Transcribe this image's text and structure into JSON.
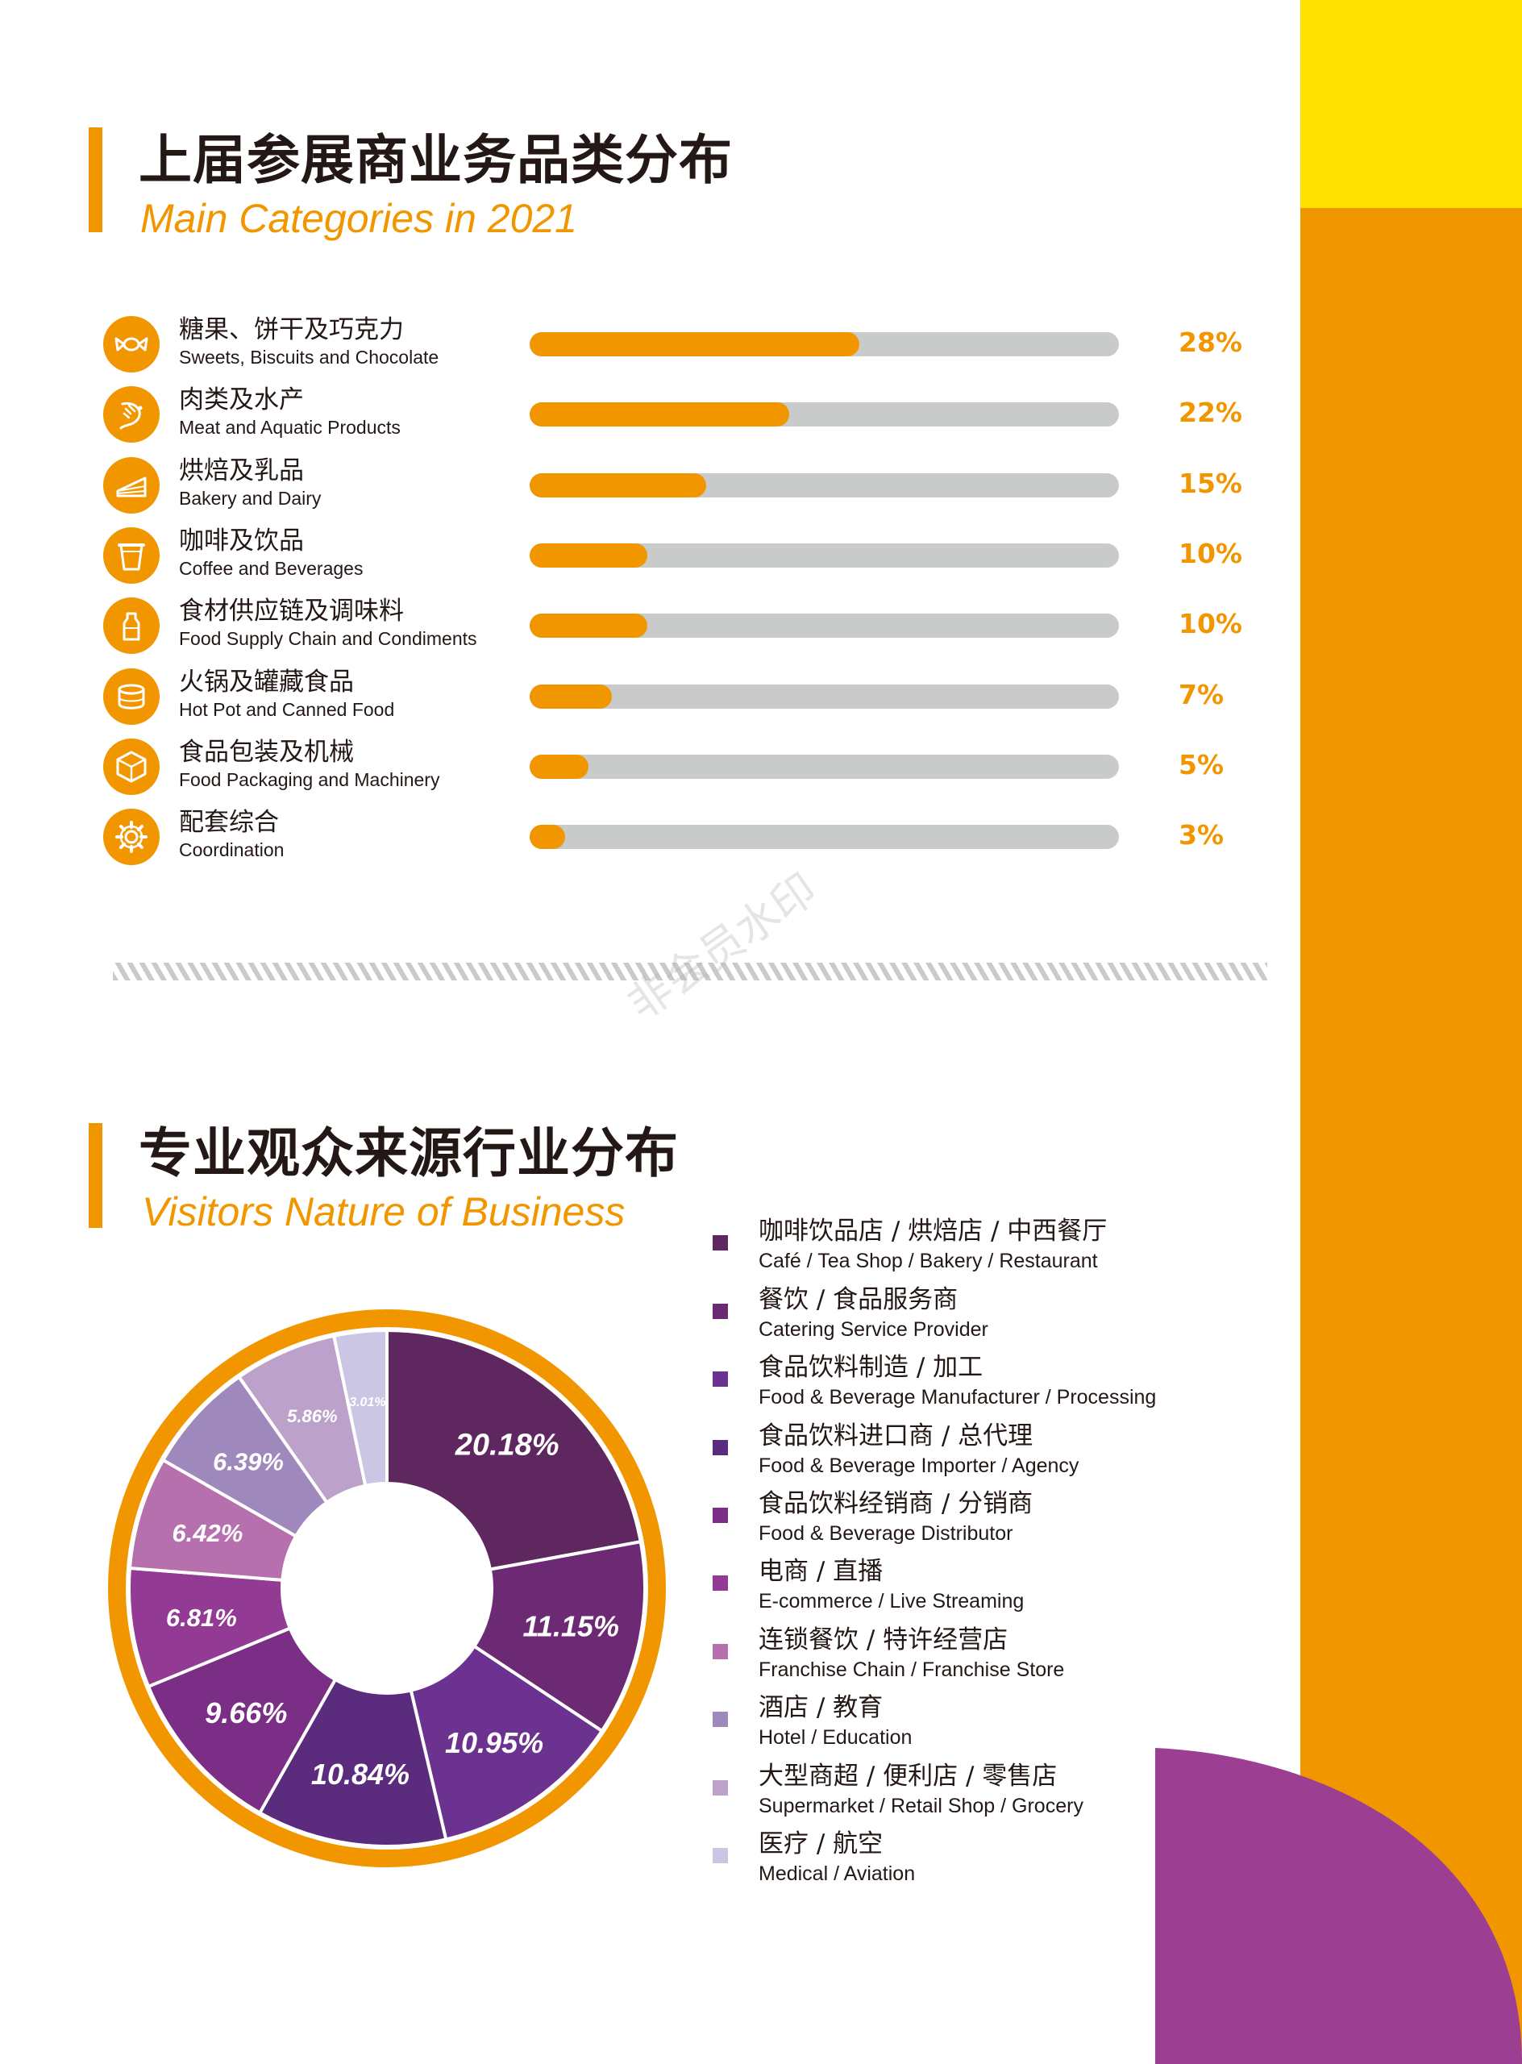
{
  "colors": {
    "accent_orange": "#F29600",
    "accent_yellow": "#FFE100",
    "accent_purple": "#9C3E91",
    "track_gray": "#C9CACA"
  },
  "section1": {
    "title": "上届参展商业务品类分布",
    "subtitle": "Main Categories in 2021"
  },
  "section2": {
    "title": "专业观众来源行业分布",
    "subtitle": "Visitors Nature of Business"
  },
  "watermark": "非会员水印",
  "chart_data": [
    {
      "type": "bar",
      "orientation": "horizontal",
      "title": "Main Categories in 2021",
      "value_unit": "%",
      "xlim": [
        0,
        50
      ],
      "categories": [
        {
          "cn": "糖果、饼干及巧克力",
          "en": "Sweets, Biscuits and Chocolate",
          "icon": "candy-icon",
          "value": 28,
          "label": "28%"
        },
        {
          "cn": "肉类及水产",
          "en": "Meat and Aquatic Products",
          "icon": "shrimp-icon",
          "value": 22,
          "label": "22%"
        },
        {
          "cn": "烘焙及乳品",
          "en": "Bakery and Dairy",
          "icon": "cake-icon",
          "value": 15,
          "label": "15%"
        },
        {
          "cn": "咖啡及饮品",
          "en": "Coffee and Beverages",
          "icon": "cup-icon",
          "value": 10,
          "label": "10%"
        },
        {
          "cn": "食材供应链及调味料",
          "en": "Food Supply Chain and Condiments",
          "icon": "condiment-bottle-icon",
          "value": 10,
          "label": "10%"
        },
        {
          "cn": "火锅及罐藏食品",
          "en": "Hot Pot and Canned Food",
          "icon": "can-icon",
          "value": 7,
          "label": "7%"
        },
        {
          "cn": "食品包装及机械",
          "en": "Food Packaging and Machinery",
          "icon": "box-icon",
          "value": 5,
          "label": "5%"
        },
        {
          "cn": "配套综合",
          "en": "Coordination",
          "icon": "gear-icon",
          "value": 3,
          "label": "3%"
        }
      ]
    },
    {
      "type": "pie",
      "variant": "donut",
      "title": "Visitors Nature of Business",
      "legend_position": "right",
      "slices": [
        {
          "cn": "咖啡饮品店 / 烘焙店 / 中西餐厅",
          "en": "Café / Tea Shop / Bakery / Restaurant",
          "value": 20.18,
          "label": "20.18%",
          "color": "#5E2760"
        },
        {
          "cn": "餐饮 / 食品服务商",
          "en": "Catering Service Provider",
          "value": 11.15,
          "label": "11.15%",
          "color": "#6C2A74"
        },
        {
          "cn": "食品饮料制造 / 加工",
          "en": "Food & Beverage Manufacturer / Processing",
          "value": 10.95,
          "label": "10.95%",
          "color": "#6B3290"
        },
        {
          "cn": "食品饮料进口商 / 总代理",
          "en": "Food & Beverage Importer / Agency",
          "value": 10.84,
          "label": "10.84%",
          "color": "#5B2C7E"
        },
        {
          "cn": "食品饮料经销商 / 分销商",
          "en": "Food & Beverage Distributor",
          "value": 9.66,
          "label": "9.66%",
          "color": "#7A2E86"
        },
        {
          "cn": "电商 / 直播",
          "en": "E-commerce / Live Streaming",
          "value": 6.81,
          "label": "6.81%",
          "color": "#933A95"
        },
        {
          "cn": "连锁餐饮 / 特许经营店",
          "en": "Franchise Chain / Franchise Store",
          "value": 6.42,
          "label": "6.42%",
          "color": "#B670AE"
        },
        {
          "cn": "酒店 / 教育",
          "en": "Hotel / Education",
          "value": 6.39,
          "label": "6.39%",
          "color": "#9F88BB"
        },
        {
          "cn": "大型商超 / 便利店 / 零售店",
          "en": "Supermarket / Retail Shop / Grocery",
          "value": 5.86,
          "label": "5.86%",
          "color": "#BCA1CA"
        },
        {
          "cn": "医疗 / 航空",
          "en": "Medical / Aviation",
          "value": 3.01,
          "label": "3.01%",
          "color": "#CBC6E3"
        }
      ]
    }
  ]
}
